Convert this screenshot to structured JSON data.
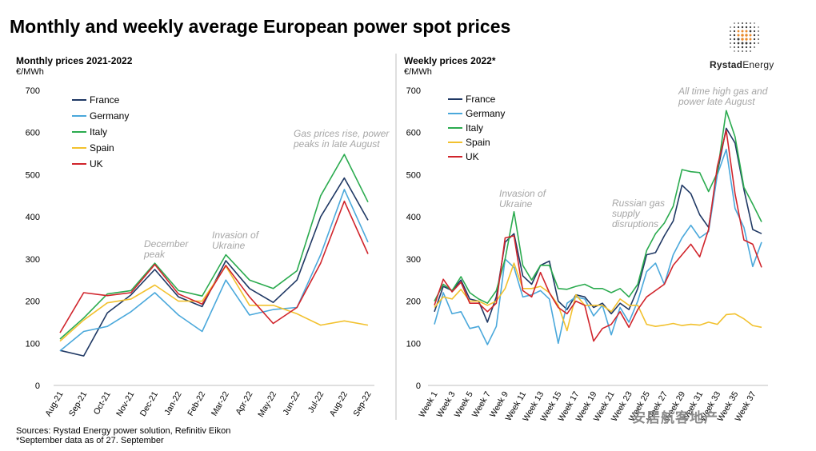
{
  "title": "Monthly and weekly average European power spot prices",
  "brand": {
    "name_bold": "Rystad",
    "name_rest": "Energy"
  },
  "footer": {
    "line1": "Sources: Rystad Energy power solution, Refinitiv Eikon",
    "line2": "*September data as of 27. September"
  },
  "watermark": "安居航客地产",
  "colors": {
    "France": "#1f3864",
    "Germany": "#4aa8db",
    "Italy": "#2bab4f",
    "Spain": "#f2c12e",
    "UK": "#d0242b",
    "annotation": "#a6a6a6",
    "axis": "#bfbfbf"
  },
  "chart_data": [
    {
      "type": "line",
      "title": "Monthly prices 2021-2022",
      "unit": "€/MWh",
      "ylim": [
        0,
        700
      ],
      "yticks": [
        0,
        100,
        200,
        300,
        400,
        500,
        600,
        700
      ],
      "categories": [
        "Aug-21",
        "Sep-21",
        "Oct-21",
        "Nov-21",
        "Dec-21",
        "Jan-22",
        "Feb-22",
        "Mar-22",
        "Apr-22",
        "May-22",
        "Jun-22",
        "Jul-22",
        "Aug-22",
        "Sep-22"
      ],
      "series": [
        {
          "name": "France",
          "values": [
            83,
            70,
            172,
            215,
            275,
            210,
            187,
            296,
            230,
            197,
            250,
            400,
            492,
            392
          ]
        },
        {
          "name": "Germany",
          "values": [
            82,
            128,
            140,
            175,
            220,
            167,
            128,
            250,
            167,
            180,
            185,
            310,
            465,
            340
          ]
        },
        {
          "name": "Italy",
          "values": [
            110,
            160,
            217,
            225,
            290,
            225,
            212,
            310,
            250,
            230,
            272,
            450,
            548,
            435
          ]
        },
        {
          "name": "Spain",
          "values": [
            105,
            155,
            196,
            205,
            238,
            200,
            200,
            283,
            190,
            190,
            170,
            143,
            153,
            143
          ]
        },
        {
          "name": "UK",
          "values": [
            125,
            220,
            213,
            220,
            287,
            217,
            193,
            285,
            210,
            147,
            185,
            290,
            437,
            312
          ]
        }
      ],
      "annotations": [
        {
          "lines": [
            "December",
            "peak"
          ]
        },
        {
          "lines": [
            "Invasion of",
            "Ukraine"
          ]
        },
        {
          "lines": [
            "Gas prices rise, power",
            "peaks in late August"
          ]
        }
      ]
    },
    {
      "type": "line",
      "title": "Weekly prices 2022*",
      "unit": "€/MWh",
      "ylim": [
        0,
        700
      ],
      "yticks": [
        0,
        100,
        200,
        300,
        400,
        500,
        600,
        700
      ],
      "x": [
        1,
        2,
        3,
        4,
        5,
        6,
        7,
        8,
        9,
        10,
        11,
        12,
        13,
        14,
        15,
        16,
        17,
        18,
        19,
        20,
        21,
        22,
        23,
        24,
        25,
        26,
        27,
        28,
        29,
        30,
        31,
        32,
        33,
        34,
        35,
        36,
        37,
        38
      ],
      "tick_labels": [
        "Week 1",
        "Week 3",
        "Week 5",
        "Week 7",
        "Week 9",
        "Week 11",
        "Week 13",
        "Week 15",
        "Week 17",
        "Week 19",
        "Week 21",
        "Week 23",
        "Week 25",
        "Week 27",
        "Week 29",
        "Week 31",
        "Week 33",
        "Week 35",
        "Week 37"
      ],
      "series": [
        {
          "name": "France",
          "values": [
            175,
            235,
            225,
            250,
            205,
            200,
            150,
            210,
            340,
            360,
            260,
            240,
            285,
            295,
            200,
            180,
            215,
            210,
            185,
            195,
            170,
            195,
            180,
            230,
            310,
            315,
            355,
            390,
            475,
            455,
            405,
            375,
            505,
            610,
            575,
            465,
            370,
            360
          ]
        },
        {
          "name": "Germany",
          "values": [
            145,
            220,
            170,
            175,
            135,
            140,
            97,
            140,
            300,
            280,
            210,
            215,
            225,
            205,
            100,
            195,
            210,
            205,
            165,
            190,
            120,
            185,
            150,
            200,
            270,
            290,
            240,
            310,
            350,
            380,
            350,
            365,
            500,
            560,
            420,
            375,
            282,
            340
          ]
        },
        {
          "name": "Italy",
          "values": [
            200,
            240,
            225,
            258,
            220,
            205,
            195,
            225,
            300,
            412,
            285,
            250,
            285,
            285,
            230,
            228,
            235,
            240,
            230,
            230,
            220,
            230,
            210,
            240,
            320,
            360,
            385,
            425,
            512,
            507,
            505,
            460,
            505,
            652,
            590,
            470,
            430,
            388
          ]
        },
        {
          "name": "Spain",
          "values": [
            185,
            210,
            205,
            228,
            200,
            200,
            190,
            200,
            230,
            290,
            230,
            230,
            235,
            220,
            190,
            130,
            215,
            190,
            190,
            190,
            175,
            205,
            190,
            190,
            145,
            140,
            143,
            147,
            142,
            145,
            143,
            150,
            145,
            168,
            170,
            158,
            142,
            138
          ]
        },
        {
          "name": "UK",
          "values": [
            190,
            252,
            222,
            245,
            195,
            195,
            175,
            195,
            350,
            355,
            225,
            210,
            268,
            220,
            185,
            170,
            200,
            190,
            105,
            135,
            145,
            175,
            138,
            180,
            210,
            225,
            240,
            285,
            310,
            335,
            305,
            370,
            520,
            605,
            455,
            345,
            335,
            280
          ]
        }
      ],
      "annotations": [
        {
          "lines": [
            "Invasion of",
            "Ukraine"
          ]
        },
        {
          "lines": [
            "Russian gas",
            "supply",
            "disruptions"
          ]
        },
        {
          "lines": [
            "All time high gas and",
            "power  late August"
          ]
        }
      ]
    }
  ]
}
